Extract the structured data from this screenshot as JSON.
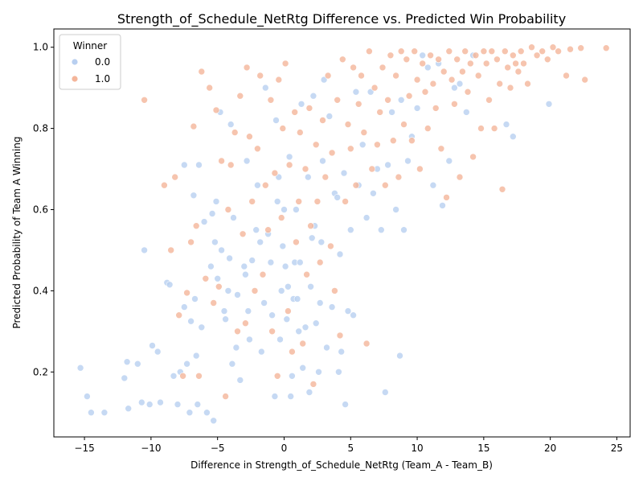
{
  "chart_data": {
    "type": "scatter",
    "title": "Strength_of_Schedule_NetRtg Difference vs. Predicted Win Probability",
    "xlabel": "Difference in Strength_of_Schedule_NetRtg (Team_A - Team_B)",
    "ylabel": "Predicted Probability of Team A Winning",
    "xlim": [
      -17.3,
      26.0
    ],
    "ylim": [
      0.04,
      1.045
    ],
    "xticks": [
      -15,
      -10,
      -5,
      0,
      5,
      10,
      15,
      20,
      25
    ],
    "yticks": [
      0.2,
      0.4,
      0.6,
      0.8,
      1.0
    ],
    "xtick_labels": [
      "−15",
      "−10",
      "−5",
      "0",
      "5",
      "10",
      "15",
      "20",
      "25"
    ],
    "ytick_labels": [
      "0.2",
      "0.4",
      "0.6",
      "0.8",
      "1.0"
    ],
    "grid": false,
    "legend": {
      "title": "Winner",
      "position": "top-left"
    },
    "colors": {
      "0.0": "#b8cff0",
      "1.0": "#f4b59a"
    },
    "series": [
      {
        "name": "0.0",
        "points": [
          [
            -15.3,
            0.21
          ],
          [
            -14.8,
            0.14
          ],
          [
            -14.5,
            0.1
          ],
          [
            -13.5,
            0.1
          ],
          [
            -12.0,
            0.185
          ],
          [
            -11.8,
            0.225
          ],
          [
            -11.7,
            0.11
          ],
          [
            -11.0,
            0.22
          ],
          [
            -10.7,
            0.125
          ],
          [
            -10.5,
            0.5
          ],
          [
            -10.1,
            0.12
          ],
          [
            -9.9,
            0.265
          ],
          [
            -9.5,
            0.25
          ],
          [
            -9.3,
            0.125
          ],
          [
            -8.8,
            0.42
          ],
          [
            -8.6,
            0.415
          ],
          [
            -8.3,
            0.19
          ],
          [
            -8.0,
            0.12
          ],
          [
            -7.8,
            0.2
          ],
          [
            -7.5,
            0.71
          ],
          [
            -7.5,
            0.36
          ],
          [
            -7.3,
            0.22
          ],
          [
            -7.1,
            0.1
          ],
          [
            -7.0,
            0.325
          ],
          [
            -6.8,
            0.635
          ],
          [
            -6.7,
            0.38
          ],
          [
            -6.6,
            0.24
          ],
          [
            -6.5,
            0.12
          ],
          [
            -6.4,
            0.71
          ],
          [
            -6.2,
            0.31
          ],
          [
            -6.0,
            0.57
          ],
          [
            -5.8,
            0.1
          ],
          [
            -5.5,
            0.46
          ],
          [
            -5.4,
            0.59
          ],
          [
            -5.3,
            0.08
          ],
          [
            -5.2,
            0.52
          ],
          [
            -5.1,
            0.62
          ],
          [
            -5.0,
            0.43
          ],
          [
            -4.8,
            0.84
          ],
          [
            -4.7,
            0.5
          ],
          [
            -4.5,
            0.35
          ],
          [
            -4.4,
            0.33
          ],
          [
            -4.2,
            0.4
          ],
          [
            -4.1,
            0.48
          ],
          [
            -4.0,
            0.81
          ],
          [
            -3.9,
            0.22
          ],
          [
            -3.8,
            0.58
          ],
          [
            -3.6,
            0.26
          ],
          [
            -3.5,
            0.39
          ],
          [
            -3.3,
            0.18
          ],
          [
            -3.0,
            0.46
          ],
          [
            -2.9,
            0.44
          ],
          [
            -2.8,
            0.72
          ],
          [
            -2.7,
            0.35
          ],
          [
            -2.6,
            0.28
          ],
          [
            -2.4,
            0.475
          ],
          [
            -2.1,
            0.55
          ],
          [
            -2.0,
            0.66
          ],
          [
            -1.8,
            0.52
          ],
          [
            -1.7,
            0.25
          ],
          [
            -1.5,
            0.37
          ],
          [
            -1.4,
            0.9
          ],
          [
            -1.2,
            0.54
          ],
          [
            -1.0,
            0.47
          ],
          [
            -0.9,
            0.34
          ],
          [
            -0.7,
            0.14
          ],
          [
            -0.6,
            0.82
          ],
          [
            -0.5,
            0.62
          ],
          [
            -0.4,
            0.68
          ],
          [
            -0.3,
            0.28
          ],
          [
            -0.2,
            0.4
          ],
          [
            -0.1,
            0.51
          ],
          [
            0.0,
            0.6
          ],
          [
            0.1,
            0.46
          ],
          [
            0.2,
            0.33
          ],
          [
            0.3,
            0.41
          ],
          [
            0.4,
            0.73
          ],
          [
            0.5,
            0.14
          ],
          [
            0.6,
            0.19
          ],
          [
            0.7,
            0.38
          ],
          [
            0.8,
            0.47
          ],
          [
            0.9,
            0.6
          ],
          [
            1.0,
            0.38
          ],
          [
            1.1,
            0.3
          ],
          [
            1.2,
            0.47
          ],
          [
            1.3,
            0.86
          ],
          [
            1.4,
            0.21
          ],
          [
            1.6,
            0.31
          ],
          [
            1.8,
            0.68
          ],
          [
            1.9,
            0.15
          ],
          [
            2.0,
            0.41
          ],
          [
            2.1,
            0.53
          ],
          [
            2.2,
            0.88
          ],
          [
            2.3,
            0.56
          ],
          [
            2.4,
            0.32
          ],
          [
            2.6,
            0.2
          ],
          [
            2.7,
            0.37
          ],
          [
            2.8,
            0.52
          ],
          [
            2.9,
            0.72
          ],
          [
            3.0,
            0.92
          ],
          [
            3.2,
            0.26
          ],
          [
            3.4,
            0.83
          ],
          [
            3.6,
            0.36
          ],
          [
            3.8,
            0.64
          ],
          [
            4.0,
            0.63
          ],
          [
            4.1,
            0.2
          ],
          [
            4.2,
            0.49
          ],
          [
            4.3,
            0.25
          ],
          [
            4.5,
            0.69
          ],
          [
            4.6,
            0.12
          ],
          [
            4.8,
            0.35
          ],
          [
            5.0,
            0.55
          ],
          [
            5.2,
            0.34
          ],
          [
            5.4,
            0.89
          ],
          [
            5.6,
            0.66
          ],
          [
            5.9,
            0.76
          ],
          [
            6.2,
            0.58
          ],
          [
            6.5,
            0.89
          ],
          [
            6.7,
            0.64
          ],
          [
            7.0,
            0.7
          ],
          [
            7.3,
            0.55
          ],
          [
            7.6,
            0.15
          ],
          [
            7.8,
            0.71
          ],
          [
            8.1,
            0.84
          ],
          [
            8.4,
            0.6
          ],
          [
            8.7,
            0.24
          ],
          [
            8.8,
            0.87
          ],
          [
            9.0,
            0.55
          ],
          [
            9.3,
            0.72
          ],
          [
            9.6,
            0.78
          ],
          [
            10.0,
            0.85
          ],
          [
            10.4,
            0.98
          ],
          [
            10.8,
            0.95
          ],
          [
            11.2,
            0.66
          ],
          [
            11.6,
            0.96
          ],
          [
            11.9,
            0.61
          ],
          [
            12.4,
            0.72
          ],
          [
            12.8,
            0.9
          ],
          [
            13.2,
            0.91
          ],
          [
            13.7,
            0.84
          ],
          [
            14.2,
            0.98
          ],
          [
            16.7,
            0.81
          ],
          [
            17.2,
            0.78
          ],
          [
            19.9,
            0.86
          ]
        ]
      },
      {
        "name": "1.0",
        "points": [
          [
            -10.5,
            0.87
          ],
          [
            -9.0,
            0.66
          ],
          [
            -8.5,
            0.5
          ],
          [
            -8.2,
            0.68
          ],
          [
            -7.9,
            0.34
          ],
          [
            -7.6,
            0.19
          ],
          [
            -7.3,
            0.395
          ],
          [
            -7.0,
            0.52
          ],
          [
            -6.8,
            0.805
          ],
          [
            -6.6,
            0.56
          ],
          [
            -6.4,
            0.19
          ],
          [
            -6.2,
            0.94
          ],
          [
            -5.9,
            0.43
          ],
          [
            -5.6,
            0.9
          ],
          [
            -5.3,
            0.37
          ],
          [
            -5.1,
            0.845
          ],
          [
            -4.9,
            0.41
          ],
          [
            -4.7,
            0.72
          ],
          [
            -4.4,
            0.14
          ],
          [
            -4.2,
            0.6
          ],
          [
            -4.0,
            0.71
          ],
          [
            -3.7,
            0.79
          ],
          [
            -3.5,
            0.3
          ],
          [
            -3.3,
            0.88
          ],
          [
            -3.1,
            0.54
          ],
          [
            -2.9,
            0.32
          ],
          [
            -2.8,
            0.95
          ],
          [
            -2.6,
            0.78
          ],
          [
            -2.4,
            0.62
          ],
          [
            -2.2,
            0.4
          ],
          [
            -2.0,
            0.75
          ],
          [
            -1.8,
            0.93
          ],
          [
            -1.6,
            0.44
          ],
          [
            -1.4,
            0.66
          ],
          [
            -1.2,
            0.55
          ],
          [
            -1.0,
            0.87
          ],
          [
            -0.9,
            0.3
          ],
          [
            -0.7,
            0.69
          ],
          [
            -0.5,
            0.19
          ],
          [
            -0.4,
            0.92
          ],
          [
            -0.2,
            0.58
          ],
          [
            -0.1,
            0.8
          ],
          [
            0.1,
            0.96
          ],
          [
            0.3,
            0.35
          ],
          [
            0.4,
            0.71
          ],
          [
            0.6,
            0.25
          ],
          [
            0.8,
            0.84
          ],
          [
            0.9,
            0.52
          ],
          [
            1.1,
            0.62
          ],
          [
            1.2,
            0.79
          ],
          [
            1.4,
            0.27
          ],
          [
            1.6,
            0.7
          ],
          [
            1.7,
            0.44
          ],
          [
            1.9,
            0.85
          ],
          [
            2.0,
            0.56
          ],
          [
            2.2,
            0.17
          ],
          [
            2.4,
            0.76
          ],
          [
            2.5,
            0.62
          ],
          [
            2.7,
            0.47
          ],
          [
            2.9,
            0.82
          ],
          [
            3.1,
            0.68
          ],
          [
            3.3,
            0.93
          ],
          [
            3.5,
            0.51
          ],
          [
            3.6,
            0.74
          ],
          [
            3.8,
            0.4
          ],
          [
            4.0,
            0.87
          ],
          [
            4.2,
            0.29
          ],
          [
            4.4,
            0.97
          ],
          [
            4.6,
            0.62
          ],
          [
            4.8,
            0.81
          ],
          [
            5.0,
            0.75
          ],
          [
            5.2,
            0.95
          ],
          [
            5.4,
            0.66
          ],
          [
            5.6,
            0.86
          ],
          [
            5.8,
            0.93
          ],
          [
            6.0,
            0.79
          ],
          [
            6.2,
            0.27
          ],
          [
            6.4,
            0.99
          ],
          [
            6.6,
            0.7
          ],
          [
            6.8,
            0.9
          ],
          [
            7.0,
            0.76
          ],
          [
            7.2,
            0.84
          ],
          [
            7.4,
            0.95
          ],
          [
            7.6,
            0.66
          ],
          [
            7.8,
            0.87
          ],
          [
            8.0,
            0.98
          ],
          [
            8.2,
            0.77
          ],
          [
            8.4,
            0.93
          ],
          [
            8.6,
            0.68
          ],
          [
            8.8,
            0.99
          ],
          [
            9.0,
            0.81
          ],
          [
            9.2,
            0.97
          ],
          [
            9.4,
            0.88
          ],
          [
            9.6,
            0.77
          ],
          [
            9.8,
            0.99
          ],
          [
            10.0,
            0.92
          ],
          [
            10.2,
            0.7
          ],
          [
            10.4,
            0.96
          ],
          [
            10.6,
            0.89
          ],
          [
            10.8,
            0.8
          ],
          [
            11.0,
            0.98
          ],
          [
            11.2,
            0.91
          ],
          [
            11.4,
            0.85
          ],
          [
            11.6,
            0.97
          ],
          [
            11.8,
            0.75
          ],
          [
            12.0,
            0.94
          ],
          [
            12.2,
            0.63
          ],
          [
            12.4,
            0.99
          ],
          [
            12.6,
            0.92
          ],
          [
            12.8,
            0.86
          ],
          [
            13.0,
            0.97
          ],
          [
            13.2,
            0.68
          ],
          [
            13.4,
            0.94
          ],
          [
            13.6,
            0.99
          ],
          [
            13.8,
            0.89
          ],
          [
            14.0,
            0.96
          ],
          [
            14.2,
            0.73
          ],
          [
            14.4,
            0.98
          ],
          [
            14.6,
            0.93
          ],
          [
            14.8,
            0.8
          ],
          [
            15.0,
            0.99
          ],
          [
            15.2,
            0.96
          ],
          [
            15.4,
            0.87
          ],
          [
            15.6,
            0.99
          ],
          [
            15.8,
            0.8
          ],
          [
            16.0,
            0.97
          ],
          [
            16.2,
            0.91
          ],
          [
            16.4,
            0.65
          ],
          [
            16.6,
            0.99
          ],
          [
            16.8,
            0.95
          ],
          [
            17.0,
            0.9
          ],
          [
            17.2,
            0.98
          ],
          [
            17.4,
            0.96
          ],
          [
            17.6,
            0.94
          ],
          [
            17.8,
            0.99
          ],
          [
            18.0,
            0.96
          ],
          [
            18.3,
            0.91
          ],
          [
            18.6,
            1.0
          ],
          [
            19.0,
            0.98
          ],
          [
            19.4,
            0.99
          ],
          [
            19.8,
            0.97
          ],
          [
            20.2,
            1.0
          ],
          [
            20.6,
            0.99
          ],
          [
            21.2,
            0.93
          ],
          [
            21.5,
            0.995
          ],
          [
            22.3,
            0.998
          ],
          [
            22.6,
            0.92
          ],
          [
            24.2,
            0.998
          ]
        ]
      }
    ]
  }
}
